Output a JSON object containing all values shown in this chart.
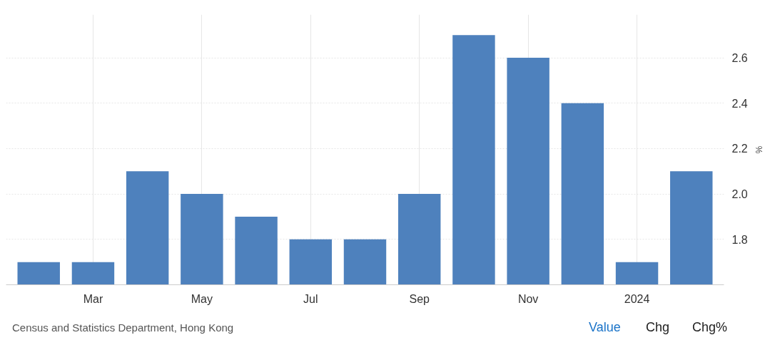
{
  "chart_data": {
    "type": "bar",
    "ylabel": "%",
    "categories": [
      null,
      "Mar",
      null,
      "May",
      null,
      "Jul",
      null,
      "Sep",
      null,
      "Nov",
      null,
      "2024",
      null
    ],
    "values": [
      1.7,
      1.7,
      2.1,
      2.0,
      1.9,
      1.8,
      1.8,
      2.0,
      2.7,
      2.6,
      2.4,
      1.7,
      2.1
    ],
    "color": "#4e81bd",
    "ylim": [
      1.6,
      2.79
    ],
    "yticks": [
      1.8,
      {
        "value": 2,
        "label": "2.0"
      },
      2.2,
      2.4,
      2.6
    ],
    "grid": true,
    "annotations": [
      "Census and Statistics Department, Hong Kong",
      "Value",
      "Chg",
      "Chg%"
    ]
  }
}
